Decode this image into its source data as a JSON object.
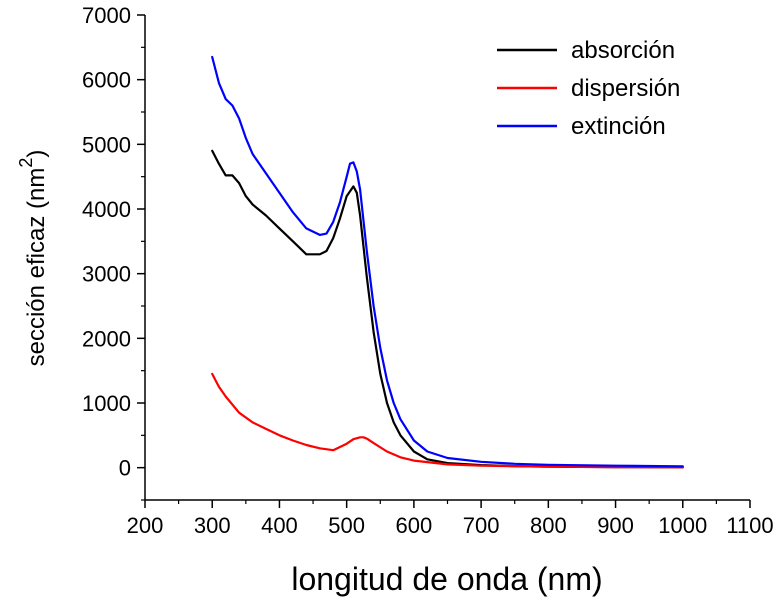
{
  "chart_data": {
    "type": "line",
    "title": "",
    "xlabel": "longitud de onda (nm)",
    "ylabel": "sección eficaz (nm",
    "ylabel_superscript": "2",
    "ylabel_close": ")",
    "xlim": [
      200,
      1100
    ],
    "ylim": [
      -500,
      7000
    ],
    "xticks": [
      200,
      300,
      400,
      500,
      600,
      700,
      800,
      900,
      1000,
      1100
    ],
    "yticks": [
      0,
      1000,
      2000,
      3000,
      4000,
      5000,
      6000,
      7000
    ],
    "xtick_labels": [
      "200",
      "300",
      "400",
      "500",
      "600",
      "700",
      "800",
      "900",
      "1000",
      "1100"
    ],
    "ytick_labels": [
      "0",
      "1000",
      "2000",
      "3000",
      "4000",
      "5000",
      "6000",
      "7000"
    ],
    "grid": false,
    "legend_position": "top-right",
    "series": [
      {
        "name": "absorción",
        "color": "#000000",
        "x": [
          300,
          310,
          320,
          330,
          340,
          350,
          360,
          380,
          400,
          420,
          440,
          460,
          470,
          480,
          490,
          500,
          510,
          515,
          520,
          530,
          540,
          550,
          560,
          570,
          580,
          600,
          620,
          650,
          700,
          750,
          800,
          900,
          1000
        ],
        "y": [
          4900,
          4700,
          4520,
          4520,
          4400,
          4200,
          4070,
          3900,
          3700,
          3500,
          3300,
          3300,
          3350,
          3550,
          3850,
          4200,
          4350,
          4250,
          3900,
          2950,
          2100,
          1450,
          1000,
          700,
          500,
          250,
          130,
          70,
          40,
          25,
          15,
          8,
          5
        ]
      },
      {
        "name": "dispersión",
        "color": "#ff0000",
        "x": [
          300,
          310,
          320,
          340,
          360,
          380,
          400,
          420,
          440,
          460,
          480,
          500,
          510,
          520,
          525,
          530,
          540,
          560,
          580,
          600,
          650,
          700,
          800,
          900,
          1000
        ],
        "y": [
          1450,
          1250,
          1100,
          850,
          700,
          600,
          500,
          420,
          350,
          300,
          270,
          370,
          440,
          470,
          470,
          450,
          380,
          250,
          160,
          110,
          50,
          30,
          15,
          8,
          5
        ]
      },
      {
        "name": "extinción",
        "color": "#0000ff",
        "x": [
          300,
          310,
          320,
          330,
          340,
          350,
          360,
          380,
          400,
          420,
          440,
          460,
          470,
          480,
          490,
          500,
          505,
          510,
          515,
          520,
          530,
          540,
          550,
          560,
          570,
          580,
          600,
          620,
          650,
          700,
          750,
          800,
          900,
          1000
        ],
        "y": [
          6350,
          5950,
          5700,
          5600,
          5400,
          5100,
          4850,
          4550,
          4250,
          3950,
          3700,
          3600,
          3620,
          3800,
          4100,
          4500,
          4700,
          4720,
          4580,
          4300,
          3350,
          2500,
          1850,
          1350,
          1000,
          750,
          420,
          250,
          150,
          90,
          60,
          45,
          30,
          20
        ]
      }
    ]
  }
}
